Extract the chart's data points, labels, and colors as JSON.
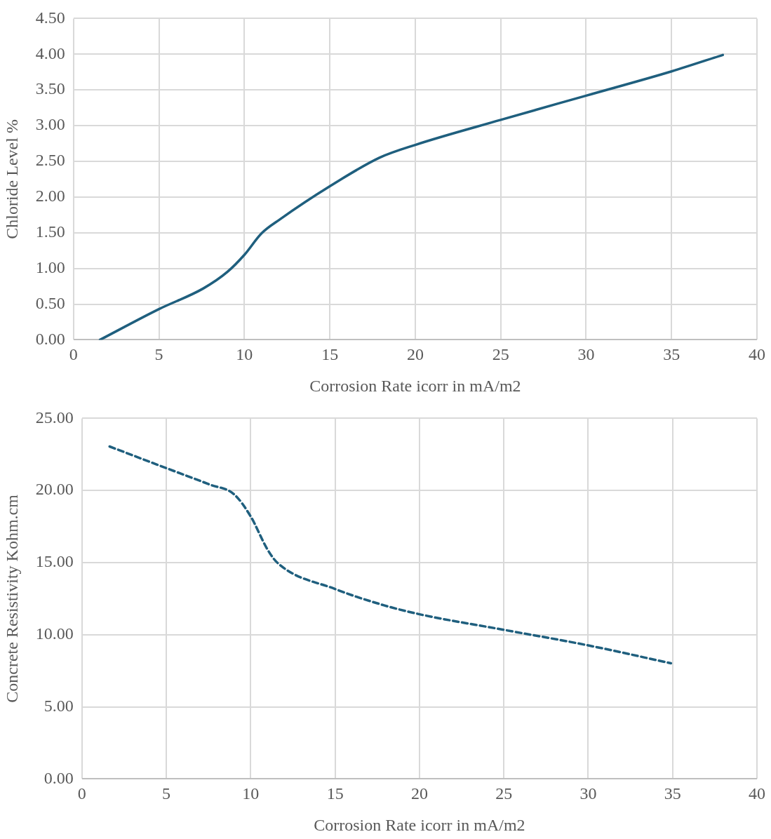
{
  "chart_data": [
    {
      "type": "line",
      "xlabel": "Corrosion Rate icorr in mA/m2",
      "ylabel": "Chloride Level %",
      "grid": true,
      "legend": false,
      "marker": "none",
      "line_style": "solid",
      "x": [
        1.55,
        5,
        7.6,
        9,
        10,
        11,
        12.1,
        15,
        17.9,
        20,
        25,
        30,
        35,
        38
      ],
      "series": [
        {
          "color": "#1f5f7e",
          "values": [
            0,
            0.43,
            0.72,
            0.95,
            1.19,
            1.49,
            1.69,
            2.15,
            2.55,
            2.73,
            3.08,
            3.42,
            3.76,
            3.99
          ]
        }
      ],
      "xlim": [
        0,
        40
      ],
      "xticks": [
        0,
        5,
        10,
        15,
        20,
        25,
        30,
        35,
        40
      ],
      "ylim": [
        0,
        4.5
      ],
      "yticks": [
        {
          "value": 0,
          "label": "0.00"
        },
        {
          "value": 0.5,
          "label": "0.50"
        },
        {
          "value": 1,
          "label": "1.00"
        },
        {
          "value": 1.5,
          "label": "1.50"
        },
        {
          "value": 2,
          "label": "2.00"
        },
        {
          "value": 2.5,
          "label": "2.50"
        },
        {
          "value": 3,
          "label": "3.00"
        },
        {
          "value": 3.5,
          "label": "3.50"
        },
        {
          "value": 4,
          "label": "4.00"
        },
        {
          "value": 4.5,
          "label": "4.50"
        }
      ]
    },
    {
      "type": "line",
      "xlabel": "Corrosion Rate icorr in mA/m2",
      "ylabel": "Concrete Resistivity Kohm.cm",
      "grid": true,
      "legend": false,
      "marker": "none",
      "line_style": "dashed",
      "x": [
        1.64,
        5,
        7.6,
        9,
        10,
        11,
        11.6,
        15,
        17.9,
        20,
        25,
        30,
        34.9
      ],
      "series": [
        {
          "color": "#1f5f7e",
          "values": [
            23.05,
            21.55,
            20.4,
            19.75,
            18.2,
            15.9,
            14.97,
            13.17,
            12.04,
            11.42,
            10.34,
            9.26,
            8.02
          ]
        }
      ],
      "xlim": [
        0,
        40
      ],
      "xticks": [
        0,
        5,
        10,
        15,
        20,
        25,
        30,
        35,
        40
      ],
      "ylim": [
        0,
        25
      ],
      "yticks": [
        {
          "value": 0,
          "label": "0.00"
        },
        {
          "value": 5,
          "label": "5.00"
        },
        {
          "value": 10,
          "label": "10.00"
        },
        {
          "value": 15,
          "label": "15.00"
        },
        {
          "value": 20,
          "label": "20.00"
        },
        {
          "value": 25,
          "label": "25.00"
        }
      ]
    }
  ]
}
